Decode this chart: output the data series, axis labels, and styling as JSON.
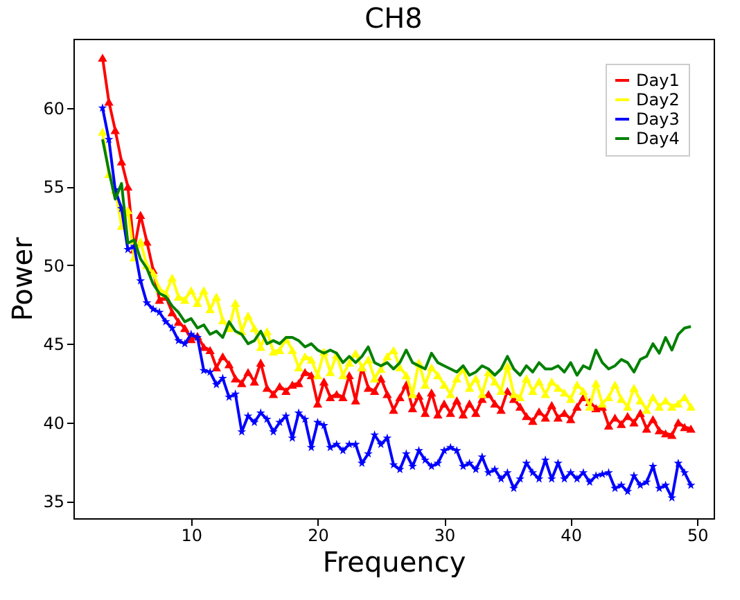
{
  "chart_data": {
    "type": "line",
    "title": "CH8",
    "xlabel": "Frequency",
    "ylabel": "Power",
    "x": [
      3,
      3.5,
      4,
      4.5,
      5,
      5.5,
      6,
      6.5,
      7,
      7.5,
      8,
      8.5,
      9,
      9.5,
      10,
      10.5,
      11,
      11.5,
      12,
      12.5,
      13,
      13.5,
      14,
      14.5,
      15,
      15.5,
      16,
      16.5,
      17,
      17.5,
      18,
      18.5,
      19,
      19.5,
      20,
      20.5,
      21,
      21.5,
      22,
      22.5,
      23,
      23.5,
      24,
      24.5,
      25,
      25.5,
      26,
      26.5,
      27,
      27.5,
      28,
      28.5,
      29,
      29.5,
      30,
      30.5,
      31,
      31.5,
      32,
      32.5,
      33,
      33.5,
      34,
      34.5,
      35,
      35.5,
      36,
      36.5,
      37,
      37.5,
      38,
      38.5,
      39,
      39.5,
      40,
      40.5,
      41,
      41.5,
      42,
      42.5,
      43,
      43.5,
      44,
      44.5,
      45,
      45.5,
      46,
      46.5,
      47,
      47.5,
      48,
      48.5,
      49,
      49.5
    ],
    "series": [
      {
        "name": "Day1",
        "color": "#ff0000",
        "marker": "triangle",
        "values": [
          63.2,
          60.4,
          58.6,
          56.6,
          55.0,
          51.0,
          53.2,
          51.5,
          49.7,
          47.8,
          48.0,
          47.0,
          46.4,
          46.0,
          45.3,
          45.5,
          44.8,
          44.6,
          43.5,
          44.2,
          43.7,
          42.8,
          42.5,
          43.2,
          42.6,
          43.8,
          42.2,
          41.8,
          42.3,
          42.0,
          42.4,
          42.5,
          43.2,
          43.0,
          41.2,
          42.6,
          41.6,
          41.8,
          41.6,
          43.0,
          41.4,
          43.5,
          42.2,
          42.0,
          42.8,
          41.8,
          40.8,
          41.6,
          42.4,
          40.9,
          41.7,
          40.6,
          41.9,
          40.5,
          41.2,
          40.6,
          41.4,
          40.5,
          41.2,
          40.6,
          41.5,
          41.8,
          41.2,
          40.8,
          42.0,
          41.5,
          41.0,
          40.4,
          40.1,
          40.7,
          40.3,
          41.1,
          40.3,
          40.6,
          40.2,
          41.0,
          41.6,
          41.3,
          40.9,
          41.0,
          39.8,
          40.3,
          39.9,
          40.4,
          40.0,
          40.6,
          39.6,
          40.2,
          39.5,
          39.3,
          39.2,
          40.0,
          39.7,
          39.6
        ]
      },
      {
        "name": "Day2",
        "color": "#ffff00",
        "marker": "triangle",
        "values": [
          58.5,
          55.8,
          54.8,
          52.5,
          53.5,
          50.5,
          51.5,
          50.0,
          49.5,
          48.5,
          48.2,
          49.2,
          48.0,
          47.8,
          48.4,
          47.6,
          48.4,
          47.2,
          48.0,
          46.5,
          46.0,
          47.6,
          45.8,
          46.8,
          46.0,
          44.8,
          45.8,
          44.5,
          44.6,
          45.3,
          44.6,
          43.5,
          44.2,
          44.0,
          43.0,
          44.5,
          43.2,
          44.3,
          43.0,
          43.8,
          44.4,
          43.5,
          44.0,
          42.8,
          43.4,
          44.2,
          44.6,
          43.5,
          43.0,
          41.8,
          43.8,
          42.4,
          43.5,
          43.0,
          42.4,
          41.8,
          42.8,
          43.4,
          42.2,
          42.8,
          41.8,
          43.2,
          42.6,
          42.0,
          43.6,
          41.8,
          41.6,
          42.8,
          42.0,
          42.6,
          41.8,
          42.6,
          42.2,
          41.9,
          41.5,
          42.4,
          42.0,
          41.0,
          42.5,
          41.2,
          41.6,
          42.4,
          41.5,
          41.0,
          42.2,
          41.4,
          40.8,
          41.6,
          41.0,
          41.4,
          41.0,
          41.2,
          41.6,
          41.0
        ]
      },
      {
        "name": "Day3",
        "color": "#0000ff",
        "marker": "star",
        "values": [
          60.0,
          58.0,
          54.8,
          53.6,
          51.0,
          51.2,
          49.0,
          47.6,
          47.2,
          47.0,
          46.4,
          46.0,
          45.2,
          45.0,
          45.6,
          45.4,
          43.3,
          43.2,
          42.4,
          42.8,
          41.6,
          41.8,
          39.4,
          40.4,
          40.0,
          40.6,
          40.2,
          39.4,
          40.0,
          40.4,
          39.0,
          40.6,
          40.2,
          38.4,
          40.0,
          39.8,
          38.4,
          38.6,
          38.2,
          38.6,
          38.6,
          37.4,
          38.0,
          39.2,
          38.6,
          39.0,
          37.3,
          37.0,
          38.0,
          37.2,
          38.2,
          37.6,
          37.2,
          37.4,
          38.2,
          38.4,
          38.2,
          37.2,
          37.4,
          37.0,
          37.8,
          36.8,
          37.0,
          36.4,
          36.8,
          35.8,
          36.4,
          37.4,
          36.8,
          36.4,
          37.6,
          36.4,
          37.4,
          36.4,
          36.8,
          36.4,
          36.8,
          36.2,
          36.6,
          36.7,
          36.8,
          35.8,
          36.0,
          35.6,
          36.6,
          36.0,
          36.2,
          37.2,
          35.8,
          36.0,
          35.2,
          37.4,
          36.8,
          36.0
        ]
      },
      {
        "name": "Day4",
        "color": "#008000",
        "values": [
          58.0,
          56.0,
          54.2,
          55.2,
          51.4,
          51.6,
          50.4,
          49.8,
          48.8,
          48.2,
          48.0,
          47.4,
          47.0,
          46.4,
          46.6,
          46.0,
          46.2,
          45.6,
          45.8,
          45.4,
          46.4,
          45.8,
          45.6,
          45.0,
          45.2,
          45.8,
          45.0,
          45.2,
          45.0,
          45.4,
          45.4,
          45.2,
          44.8,
          45.0,
          44.6,
          44.4,
          44.6,
          44.4,
          43.8,
          44.2,
          43.8,
          44.2,
          44.8,
          43.8,
          43.6,
          43.8,
          43.4,
          43.8,
          44.6,
          43.8,
          43.6,
          43.4,
          44.4,
          43.8,
          43.6,
          43.4,
          43.2,
          43.6,
          43.0,
          43.2,
          43.6,
          43.4,
          43.0,
          43.4,
          44.2,
          43.4,
          43.0,
          43.6,
          43.2,
          43.8,
          43.4,
          43.4,
          43.6,
          43.2,
          43.8,
          43.0,
          43.6,
          43.4,
          44.6,
          43.8,
          43.4,
          43.6,
          44.0,
          43.8,
          43.2,
          44.0,
          44.2,
          45.0,
          44.4,
          45.4,
          44.6,
          45.6,
          46.0,
          46.1
        ]
      }
    ],
    "xlim": [
      0.7,
      51.3
    ],
    "ylim": [
      33.9,
      64.4
    ],
    "xticks": [
      10,
      20,
      30,
      40,
      50
    ],
    "yticks": [
      35,
      40,
      45,
      50,
      55,
      60
    ],
    "legend": "top right",
    "grid": false
  }
}
